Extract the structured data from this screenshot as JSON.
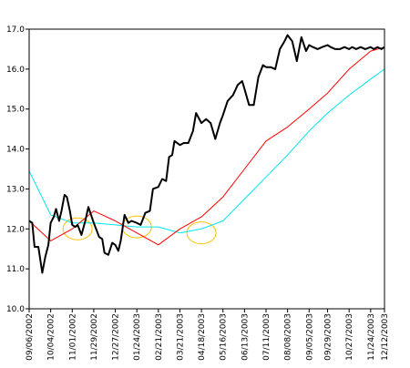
{
  "chart_data": {
    "type": "line",
    "title": "",
    "xlabel": "",
    "ylabel": "",
    "ylim": [
      10.0,
      17.0
    ],
    "y_ticks": [
      "10.0",
      "11.0",
      "12.0",
      "13.0",
      "14.0",
      "15.0",
      "16.0",
      "17.0"
    ],
    "x_tick_labels": [
      "09/06/2002",
      "10/04/2002",
      "11/01/2002",
      "11/29/2002",
      "12/27/2002",
      "01/24/2003",
      "02/21/2003",
      "03/21/2003",
      "04/18/2003",
      "05/16/2003",
      "06/13/2003",
      "07/11/2003",
      "08/08/2003",
      "09/05/2003",
      "09/29/2003",
      "10/27/2003",
      "11/24/2003",
      "12/12/2003"
    ],
    "grid": false,
    "legend": "none",
    "series": [
      {
        "color": "#000000",
        "style": "price",
        "x": [
          "09/06/2002",
          "09/10/2002",
          "09/13/2002",
          "09/18/2002",
          "09/23/2002",
          "09/27/2002",
          "10/01/2002",
          "10/04/2002",
          "10/08/2002",
          "10/11/2002",
          "10/15/2002",
          "10/18/2002",
          "10/22/2002",
          "10/25/2002",
          "10/29/2002",
          "11/01/2002",
          "11/05/2002",
          "11/08/2002",
          "11/13/2002",
          "11/18/2002",
          "11/22/2002",
          "11/29/2002",
          "12/03/2002",
          "12/06/2002",
          "12/10/2002",
          "12/13/2002",
          "12/18/2002",
          "12/23/2002",
          "12/27/2002",
          "12/31/2002",
          "01/03/2003",
          "01/08/2003",
          "01/13/2003",
          "01/17/2003",
          "01/24/2003",
          "01/29/2003",
          "02/04/2003",
          "02/10/2003",
          "02/14/2003",
          "02/21/2003",
          "02/26/2003",
          "03/03/2003",
          "03/07/2003",
          "03/11/2003",
          "03/14/2003",
          "03/21/2003",
          "03/26/2003",
          "04/01/2003",
          "04/07/2003",
          "04/11/2003",
          "04/18/2003",
          "04/24/2003",
          "04/30/2003",
          "05/06/2003",
          "05/12/2003",
          "05/16/2003",
          "05/22/2003",
          "05/29/2003",
          "06/04/2003",
          "06/10/2003",
          "06/13/2003",
          "06/19/2003",
          "06/25/2003",
          "07/01/2003",
          "07/07/2003",
          "07/11/2003",
          "07/17/2003",
          "07/23/2003",
          "07/29/2003",
          "08/04/2003",
          "08/08/2003",
          "08/14/2003",
          "08/20/2003",
          "08/26/2003",
          "09/01/2003",
          "09/05/2003",
          "09/10/2003",
          "09/16/2003",
          "09/22/2003",
          "09/29/2003",
          "10/03/2003",
          "10/09/2003",
          "10/15/2003",
          "10/21/2003",
          "10/27/2003",
          "10/31/2003",
          "11/05/2003",
          "11/11/2003",
          "11/17/2003",
          "11/24/2003",
          "11/28/2003",
          "12/03/2003",
          "12/08/2003",
          "12/12/2003"
        ],
        "values": [
          12.2,
          12.15,
          11.55,
          11.55,
          10.9,
          11.3,
          11.6,
          12.15,
          12.3,
          12.5,
          12.2,
          12.45,
          12.85,
          12.8,
          12.45,
          12.1,
          12.05,
          12.1,
          11.85,
          12.2,
          12.55,
          12.15,
          11.95,
          11.8,
          11.75,
          11.4,
          11.35,
          11.65,
          11.6,
          11.45,
          11.7,
          12.35,
          12.15,
          12.2,
          12.15,
          12.1,
          12.4,
          12.45,
          13.0,
          13.05,
          13.25,
          13.2,
          13.8,
          13.85,
          14.2,
          14.1,
          14.15,
          14.15,
          14.45,
          14.9,
          14.65,
          14.75,
          14.65,
          14.25,
          14.65,
          14.85,
          15.2,
          15.35,
          15.6,
          15.7,
          15.5,
          15.1,
          15.1,
          15.8,
          16.1,
          16.05,
          16.05,
          16.0,
          16.5,
          16.7,
          16.85,
          16.7,
          16.2,
          16.8,
          16.45,
          16.6,
          16.55,
          16.5,
          16.55,
          16.6,
          16.55,
          16.5,
          16.5,
          16.55,
          16.5,
          16.55,
          16.5,
          16.55,
          16.5,
          16.55,
          16.5,
          16.55,
          16.5,
          16.55
        ]
      },
      {
        "color": "#ff0000",
        "style": "short moving average",
        "x": [
          "09/06/2002",
          "10/04/2002",
          "11/01/2002",
          "11/29/2002",
          "12/27/2002",
          "01/24/2003",
          "02/21/2003",
          "03/21/2003",
          "04/18/2003",
          "05/16/2003",
          "06/13/2003",
          "07/11/2003",
          "08/08/2003",
          "09/05/2003",
          "09/29/2003",
          "10/27/2003",
          "11/24/2003",
          "12/12/2003"
        ],
        "values": [
          12.2,
          11.7,
          12.0,
          12.45,
          12.2,
          11.9,
          11.6,
          12.0,
          12.3,
          12.8,
          13.5,
          14.2,
          14.55,
          15.0,
          15.4,
          16.0,
          16.45,
          16.55
        ]
      },
      {
        "color": "#00e5ee",
        "style": "long moving average",
        "x": [
          "09/06/2002",
          "10/04/2002",
          "11/01/2002",
          "11/29/2002",
          "12/27/2002",
          "01/24/2003",
          "02/21/2003",
          "03/21/2003",
          "04/18/2003",
          "05/16/2003",
          "06/13/2003",
          "07/11/2003",
          "08/08/2003",
          "09/05/2003",
          "09/29/2003",
          "10/27/2003",
          "11/24/2003",
          "12/12/2003"
        ],
        "values": [
          13.45,
          12.35,
          12.15,
          12.15,
          12.1,
          12.05,
          12.05,
          11.9,
          12.0,
          12.2,
          12.75,
          13.3,
          13.85,
          14.45,
          14.9,
          15.35,
          15.75,
          16.0
        ]
      }
    ],
    "annotations": [
      {
        "shape": "ellipse",
        "color": "#ffc000",
        "x": "11/08/2002",
        "y": 12.0
      },
      {
        "shape": "ellipse",
        "color": "#ffc000",
        "x": "01/24/2003",
        "y": 12.05
      },
      {
        "shape": "ellipse",
        "color": "#ffc000",
        "x": "04/18/2003",
        "y": 11.9
      }
    ]
  }
}
